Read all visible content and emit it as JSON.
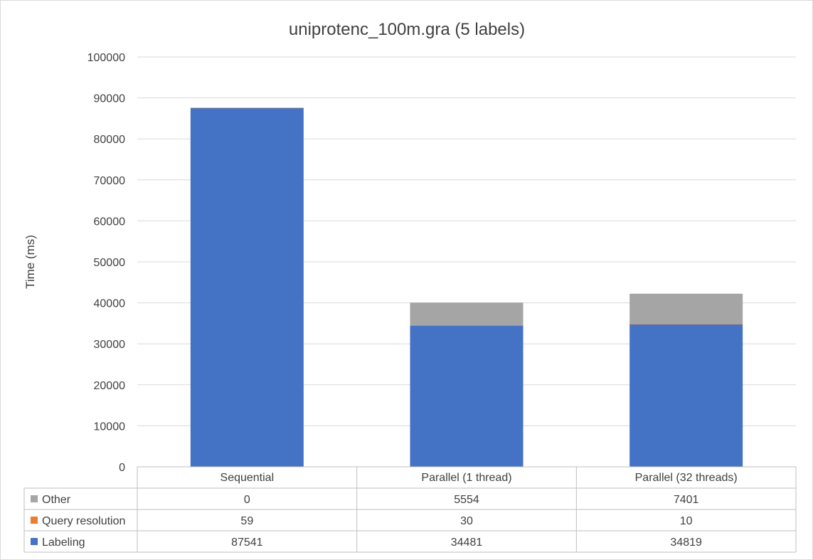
{
  "chart_data": {
    "type": "bar",
    "stacked": true,
    "title": "uniprotenc_100m.gra (5 labels)",
    "xlabel": "",
    "ylabel": "Time (ms)",
    "ylim": [
      0,
      100000
    ],
    "yticks": [
      0,
      10000,
      20000,
      30000,
      40000,
      50000,
      60000,
      70000,
      80000,
      90000,
      100000
    ],
    "grid": true,
    "legend": "data-table",
    "categories": [
      "Sequential",
      "Parallel (1 thread)",
      "Parallel (32 threads)"
    ],
    "series": [
      {
        "name": "Labeling",
        "values": [
          87541,
          34481,
          34819
        ],
        "color": "#4472c4"
      },
      {
        "name": "Query resolution",
        "values": [
          59,
          30,
          10
        ],
        "color": "#ed7d31"
      },
      {
        "name": "Other",
        "values": [
          0,
          5554,
          7401
        ],
        "color": "#a5a5a5"
      }
    ]
  }
}
